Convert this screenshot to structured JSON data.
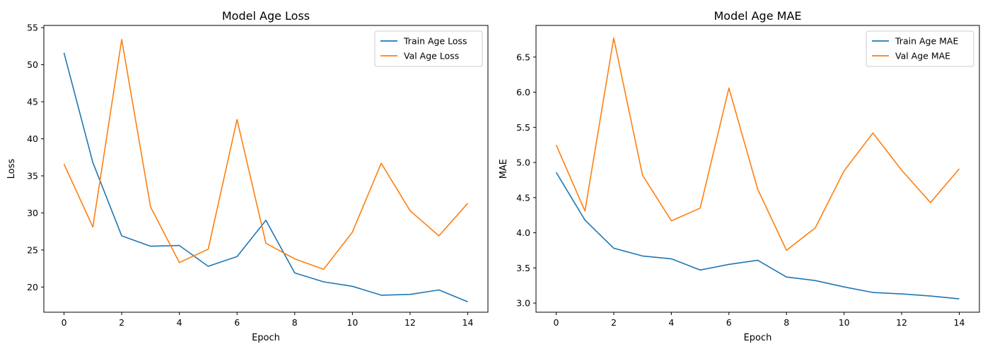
{
  "chart_data": [
    {
      "type": "line",
      "title": "Model Age Loss",
      "xlabel": "Epoch",
      "ylabel": "Loss",
      "xlim": [
        -0.7,
        14.7
      ],
      "ylim": [
        16.6,
        55.3
      ],
      "xticks": [
        0,
        2,
        4,
        6,
        8,
        10,
        12,
        14
      ],
      "yticks": [
        20,
        25,
        30,
        35,
        40,
        45,
        50,
        55
      ],
      "ytick_labels": [
        "20",
        "25",
        "30",
        "35",
        "40",
        "45",
        "50",
        "55"
      ],
      "legend_position": "top-right",
      "grid": false,
      "x": [
        0,
        1,
        2,
        3,
        4,
        5,
        6,
        7,
        8,
        9,
        10,
        11,
        12,
        13,
        14
      ],
      "series": [
        {
          "name": "Train Age Loss",
          "color": "#1f77b4",
          "values": [
            51.6,
            36.8,
            26.9,
            25.5,
            25.6,
            22.8,
            24.1,
            29.0,
            21.9,
            20.7,
            20.1,
            18.9,
            19.0,
            19.6,
            18.0
          ]
        },
        {
          "name": "Val Age Loss",
          "color": "#ff7f0e",
          "values": [
            36.6,
            28.1,
            53.4,
            30.8,
            23.3,
            25.1,
            42.6,
            25.9,
            23.8,
            22.4,
            27.4,
            36.7,
            30.3,
            26.9,
            31.3
          ]
        }
      ]
    },
    {
      "type": "line",
      "title": "Model Age MAE",
      "xlabel": "Epoch",
      "ylabel": "MAE",
      "xlim": [
        -0.7,
        14.7
      ],
      "ylim": [
        2.87,
        6.95
      ],
      "xticks": [
        0,
        2,
        4,
        6,
        8,
        10,
        12,
        14
      ],
      "yticks": [
        3.0,
        3.5,
        4.0,
        4.5,
        5.0,
        5.5,
        6.0,
        6.5
      ],
      "ytick_labels": [
        "3.0",
        "3.5",
        "4.0",
        "4.5",
        "5.0",
        "5.5",
        "6.0",
        "6.5"
      ],
      "legend_position": "top-right",
      "grid": false,
      "x": [
        0,
        1,
        2,
        3,
        4,
        5,
        6,
        7,
        8,
        9,
        10,
        11,
        12,
        13,
        14
      ],
      "series": [
        {
          "name": "Train Age MAE",
          "color": "#1f77b4",
          "values": [
            4.86,
            4.18,
            3.78,
            3.67,
            3.63,
            3.47,
            3.55,
            3.61,
            3.37,
            3.32,
            3.23,
            3.15,
            3.13,
            3.1,
            3.06
          ]
        },
        {
          "name": "Val Age MAE",
          "color": "#ff7f0e",
          "values": [
            5.25,
            4.31,
            6.77,
            4.82,
            4.17,
            4.35,
            6.06,
            4.62,
            3.75,
            4.07,
            4.88,
            5.42,
            4.89,
            4.43,
            4.91
          ]
        }
      ]
    }
  ]
}
